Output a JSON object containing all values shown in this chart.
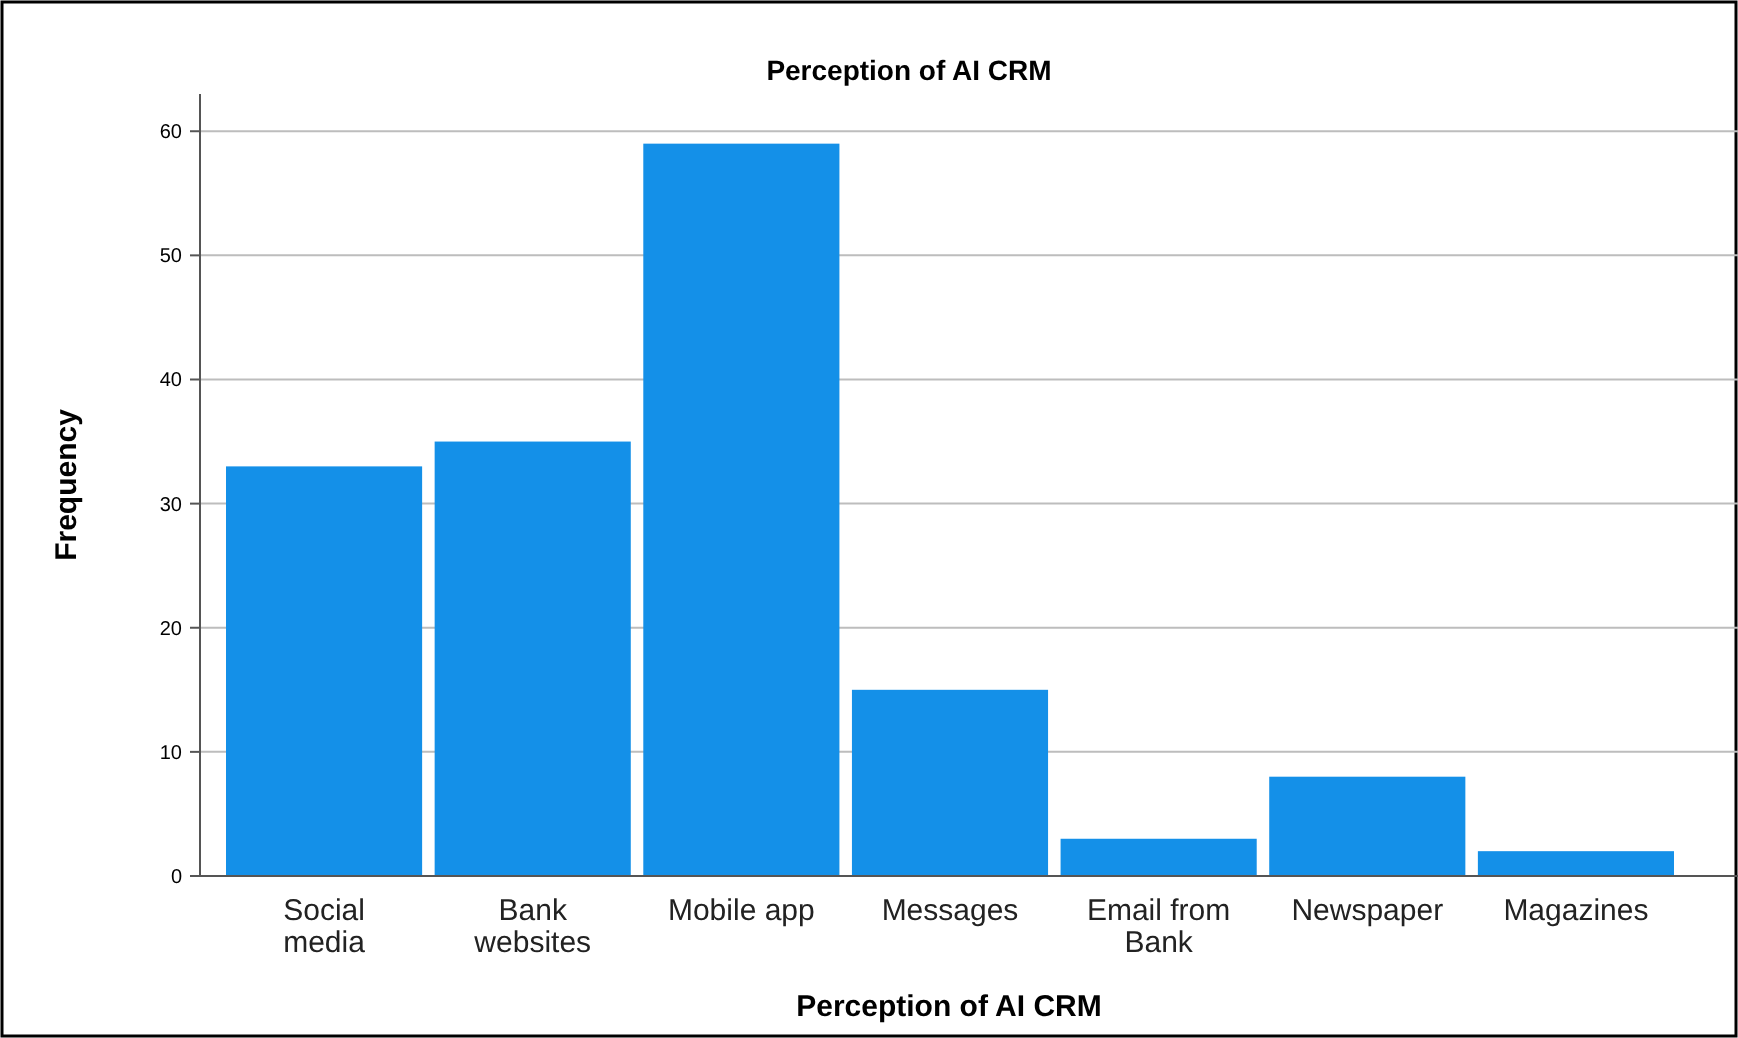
{
  "chart_data": {
    "type": "bar",
    "title": "Perception of AI CRM",
    "xlabel": "Perception of AI CRM",
    "ylabel": "Frequency",
    "categories": [
      "Social media",
      "Bank websites",
      "Mobile app",
      "Messages",
      "Email from Bank",
      "Newspaper",
      "Magazines"
    ],
    "values": [
      33,
      35,
      59,
      15,
      3,
      8,
      2
    ],
    "color": "#1490e8",
    "ylim": [
      0,
      63
    ],
    "yticks": [
      0,
      10,
      20,
      30,
      40,
      50,
      60
    ],
    "grid": "y"
  }
}
